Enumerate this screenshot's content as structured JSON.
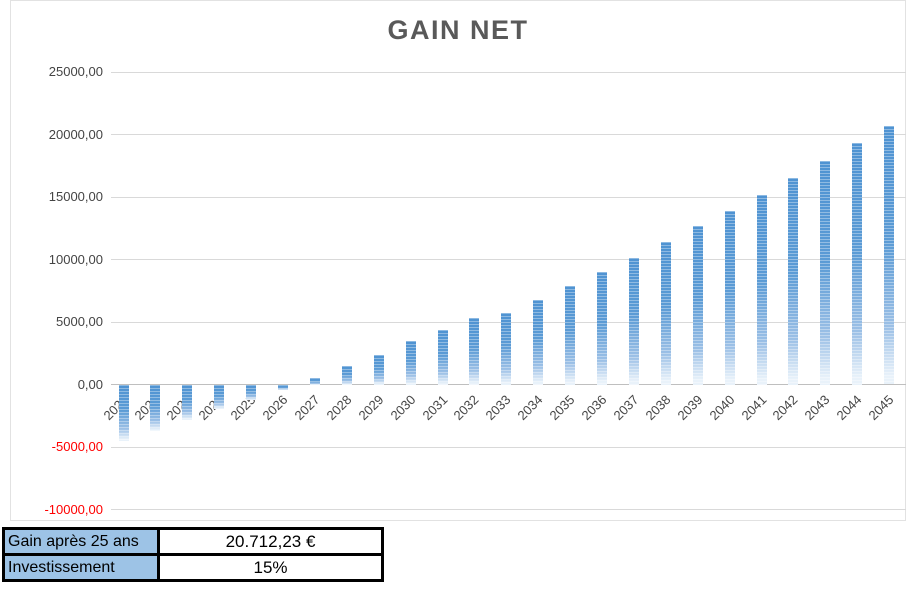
{
  "title": "GAIN NET",
  "colors": {
    "bar_top": "#4f93d2",
    "bar_mid": "#5b9bd5",
    "bar_fade1": "#9cc0e6",
    "bar_fade2": "#e9f2fa",
    "gridline": "#d9d9d9",
    "zero_line": "#bfbfbf",
    "axis_text": "#444444",
    "negative_tick_text": "#ff0000",
    "title_text": "#595959",
    "table_label_bg": "#9dc3e6",
    "table_value_bg": "#ffffff",
    "table_border": "#000000"
  },
  "chart_data": {
    "type": "bar",
    "title": "GAIN NET",
    "xlabel": "",
    "ylabel": "",
    "grid": true,
    "legend_position": "none",
    "ylim": [
      -10000,
      25000
    ],
    "categories": [
      2021,
      2022,
      2023,
      2024,
      2025,
      2026,
      2027,
      2028,
      2029,
      2030,
      2031,
      2032,
      2033,
      2034,
      2035,
      2036,
      2037,
      2038,
      2039,
      2040,
      2041,
      2042,
      2043,
      2044,
      2045
    ],
    "values": [
      -4550,
      -3700,
      -2800,
      -1950,
      -1200,
      -400,
      500,
      1450,
      2350,
      3450,
      4400,
      5350,
      5750,
      6800,
      7850,
      9000,
      10150,
      11400,
      12650,
      13900,
      15150,
      16550,
      17900,
      19300,
      20712.23
    ],
    "yticks": [
      {
        "value": 25000,
        "label": "25000,00",
        "negative": false
      },
      {
        "value": 20000,
        "label": "20000,00",
        "negative": false
      },
      {
        "value": 15000,
        "label": "15000,00",
        "negative": false
      },
      {
        "value": 10000,
        "label": "10000,00",
        "negative": false
      },
      {
        "value": 5000,
        "label": "5000,00",
        "negative": false
      },
      {
        "value": 0,
        "label": "0,00",
        "negative": false
      },
      {
        "value": -5000,
        "label": "-5000,00",
        "negative": true
      },
      {
        "value": -10000,
        "label": "-10000,00",
        "negative": true
      }
    ]
  },
  "summary_table": {
    "rows": [
      {
        "label": "Gain après 25 ans",
        "value": "20.712,23 €"
      },
      {
        "label": "Investissement",
        "value": "15%"
      }
    ]
  }
}
